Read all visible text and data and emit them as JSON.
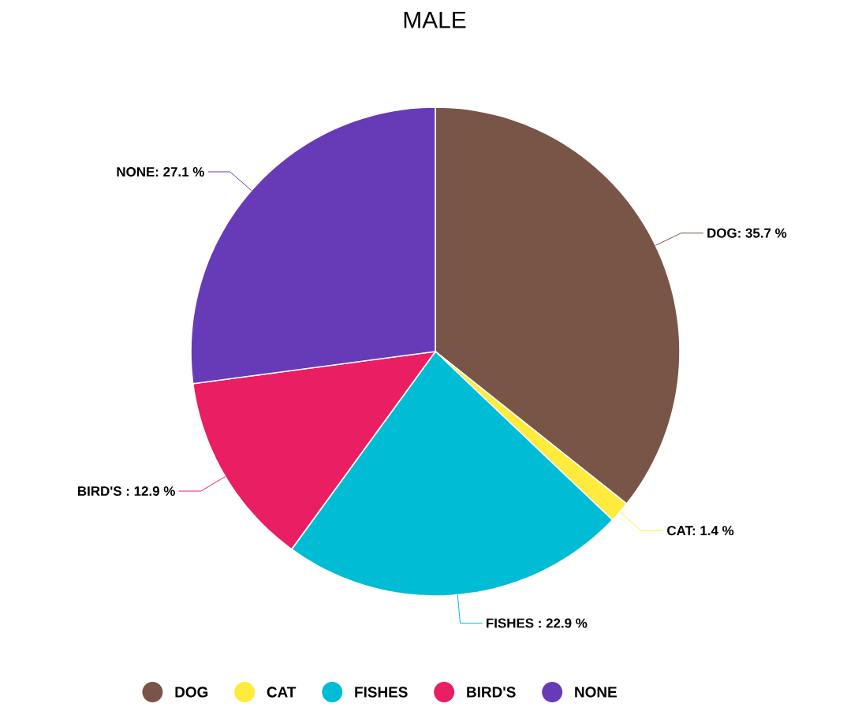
{
  "chart_data": {
    "type": "pie",
    "title": "MALE",
    "categories": [
      "DOG",
      "CAT",
      "FISHES",
      "BIRD'S",
      "NONE"
    ],
    "values": [
      35.7,
      1.4,
      22.9,
      12.9,
      27.1
    ],
    "colors": [
      "#795548",
      "#ffeb3b",
      "#00bcd4",
      "#e91e63",
      "#673ab7"
    ],
    "value_labels": [
      "DOG: 35.7 %",
      "CAT: 1.4 %",
      "FISHES : 22.9 %",
      "BIRD'S : 12.9 %",
      "NONE: 27.1 %"
    ],
    "legend": "bottom"
  }
}
